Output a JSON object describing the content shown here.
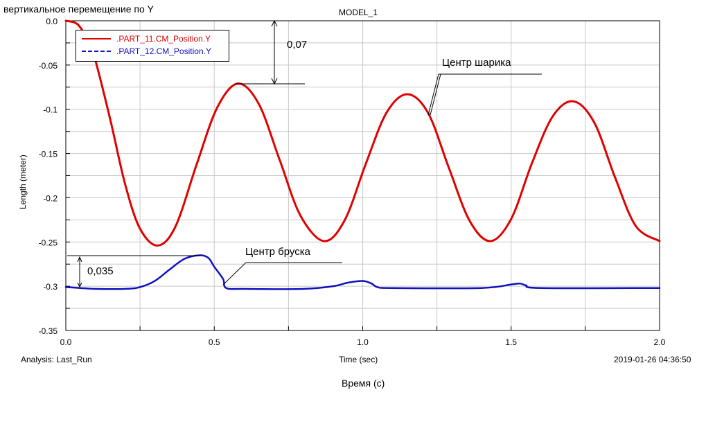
{
  "header": {
    "subtitle": "вертикальное перемещение по Y",
    "title": "MODEL_1"
  },
  "footer": {
    "analysis": "Analysis:  Last_Run",
    "timestamp": "2019-01-26 04:36:50",
    "caption": "Время (с)"
  },
  "annotations": {
    "amp1": "0,07",
    "amp2": "0,035",
    "ball_center": "Центр шарика",
    "bar_center": "Центр  бруска"
  },
  "chart_data": {
    "type": "line",
    "title": "MODEL_1",
    "xlabel": "Time (sec)",
    "ylabel": "Length (meter)",
    "xlim": [
      0.0,
      2.0
    ],
    "ylim": [
      -0.35,
      0.0
    ],
    "x_ticks": [
      "0.0",
      "0.5",
      "1.0",
      "1.5",
      "2.0"
    ],
    "y_ticks": [
      "0.0",
      "-0.05",
      "-0.1",
      "-0.15",
      "-0.2",
      "-0.25",
      "-0.3",
      "-0.35"
    ],
    "grid": true,
    "legend_position": "top-left",
    "series": [
      {
        "name": ".PART_11.CM_Position.Y",
        "color": "#e00000",
        "style": "solid",
        "x": [
          0.0,
          0.03,
          0.05,
          0.08,
          0.1,
          0.15,
          0.2,
          0.25,
          0.31,
          0.37,
          0.44,
          0.51,
          0.58,
          0.65,
          0.72,
          0.79,
          0.87,
          0.94,
          1.01,
          1.08,
          1.15,
          1.22,
          1.29,
          1.36,
          1.43,
          1.5,
          1.57,
          1.64,
          1.71,
          1.78,
          1.85,
          1.92,
          2.0
        ],
        "y": [
          0.0,
          -0.002,
          -0.008,
          -0.025,
          -0.045,
          -0.112,
          -0.185,
          -0.235,
          -0.254,
          -0.232,
          -0.163,
          -0.098,
          -0.071,
          -0.094,
          -0.157,
          -0.22,
          -0.249,
          -0.225,
          -0.162,
          -0.104,
          -0.083,
          -0.104,
          -0.166,
          -0.226,
          -0.249,
          -0.224,
          -0.161,
          -0.108,
          -0.091,
          -0.115,
          -0.177,
          -0.232,
          -0.249
        ]
      },
      {
        "name": ".PART_12.CM_Position.Y",
        "color": "#1010c0",
        "style": "dashed",
        "x": [
          0.0,
          0.05,
          0.1,
          0.2,
          0.25,
          0.3,
          0.35,
          0.4,
          0.45,
          0.48,
          0.5,
          0.53,
          0.54,
          0.6,
          0.8,
          0.9,
          0.95,
          1.0,
          1.03,
          1.05,
          1.1,
          1.4,
          1.5,
          1.53,
          1.55,
          1.6,
          2.0
        ],
        "y": [
          -0.301,
          -0.302,
          -0.303,
          -0.303,
          -0.301,
          -0.294,
          -0.281,
          -0.269,
          -0.265,
          -0.268,
          -0.278,
          -0.292,
          -0.302,
          -0.303,
          -0.303,
          -0.3,
          -0.296,
          -0.294,
          -0.297,
          -0.301,
          -0.302,
          -0.302,
          -0.298,
          -0.297,
          -0.299,
          -0.302,
          -0.302
        ]
      }
    ]
  }
}
